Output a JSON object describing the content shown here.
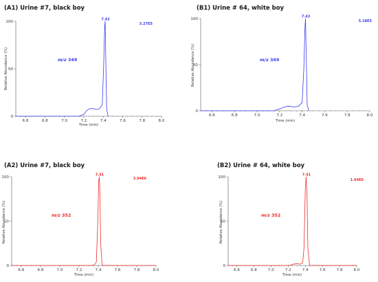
{
  "colors": {
    "blue": "#3a3aee",
    "red": "#ee2a2a",
    "axis": "#555555",
    "tail": "#b0b0b0"
  },
  "chart_data": [
    {
      "type": "line",
      "title": "(A1) Urine #7, black boy",
      "xlabel": "Time (min)",
      "ylabel": "Relative Abundance (%)",
      "xlim": [
        6.5,
        8.0
      ],
      "ylim": [
        0,
        100
      ],
      "x_ticks": [
        "6.6",
        "6.8",
        "7.0",
        "7.2",
        "7.4",
        "7.6",
        "7.8",
        "8.0"
      ],
      "y_ticks": [
        "0",
        "50",
        "100"
      ],
      "ion_prefix": "m/z",
      "ion_value": "349",
      "peak_label": "7.42",
      "abundance_label": "3.27E5",
      "color": "#3a3aee",
      "series": [
        {
          "x": [
            6.5,
            7.15,
            7.2,
            7.23,
            7.26,
            7.3,
            7.34,
            7.37,
            7.39,
            7.405,
            7.415,
            7.42,
            7.425,
            7.435,
            7.45
          ],
          "y": [
            0,
            0,
            2,
            6,
            8,
            8,
            7,
            9,
            12,
            55,
            95,
            100,
            70,
            8,
            0
          ]
        }
      ]
    },
    {
      "type": "line",
      "title": "(B1) Urine # 64, white boy",
      "xlabel": "Time (min)",
      "ylabel": "Relative Abundance (%)",
      "xlim": [
        6.5,
        8.0
      ],
      "ylim": [
        0,
        100
      ],
      "x_ticks": [
        "6.6",
        "6.8",
        "7.0",
        "7.2",
        "7.4",
        "7.6",
        "7.8",
        "8.0"
      ],
      "y_ticks": [
        "0",
        "50",
        "100"
      ],
      "ion_prefix": "m/z",
      "ion_value": "349",
      "peak_label": "7.43",
      "abundance_label": "5.18E5",
      "color": "#3a3aee",
      "series": [
        {
          "x": [
            6.5,
            7.15,
            7.2,
            7.24,
            7.28,
            7.33,
            7.37,
            7.4,
            7.415,
            7.425,
            7.43,
            7.435,
            7.445,
            7.46
          ],
          "y": [
            0,
            0,
            2,
            4,
            5,
            4,
            5,
            9,
            45,
            90,
            100,
            70,
            6,
            0
          ]
        },
        {
          "x": [
            7.46,
            7.5,
            8.0
          ],
          "y": [
            0,
            0,
            0
          ]
        }
      ]
    },
    {
      "type": "line",
      "title": "(A2) Urine #7, black boy",
      "xlabel": "Time (min)",
      "ylabel": "Relative Abundance (%)",
      "xlim": [
        6.5,
        8.0
      ],
      "ylim": [
        0,
        100
      ],
      "x_ticks": [
        "6.6",
        "6.8",
        "7.0",
        "7.2",
        "7.4",
        "7.6",
        "7.8",
        "8.0"
      ],
      "y_ticks": [
        "0",
        "50",
        "100"
      ],
      "ion_prefix": "m/z",
      "ion_value": "352",
      "peak_label": "7.41",
      "abundance_label": "3.94E6",
      "color": "#ee2a2a",
      "series": [
        {
          "x": [
            6.5,
            7.3,
            7.36,
            7.38,
            7.395,
            7.405,
            7.41,
            7.415,
            7.425,
            7.44,
            8.0
          ],
          "y": [
            0,
            0,
            0.5,
            4,
            50,
            95,
            100,
            90,
            25,
            0,
            0
          ]
        }
      ]
    },
    {
      "type": "line",
      "title": "(B2) Urine # 64, white boy",
      "xlabel": "Time (min)",
      "ylabel": "Relative Abundance (%)",
      "xlim": [
        6.5,
        8.0
      ],
      "ylim": [
        0,
        100
      ],
      "x_ticks": [
        "6.6",
        "6.8",
        "7.0",
        "7.2",
        "7.4",
        "7.6",
        "7.8",
        "8.0"
      ],
      "y_ticks": [
        "0",
        "50",
        "100"
      ],
      "ion_prefix": "m/z",
      "ion_value": "352",
      "peak_label": "7.41",
      "abundance_label": "1.64E6",
      "color": "#ee2a2a",
      "series": [
        {
          "x": [
            6.5,
            7.22,
            7.26,
            7.3,
            7.34,
            7.37,
            7.385,
            7.4,
            7.41,
            7.42,
            7.43,
            7.45,
            8.0
          ],
          "y": [
            0,
            0,
            1.5,
            2,
            1.5,
            3,
            20,
            85,
            100,
            80,
            20,
            0,
            0
          ]
        }
      ]
    }
  ]
}
